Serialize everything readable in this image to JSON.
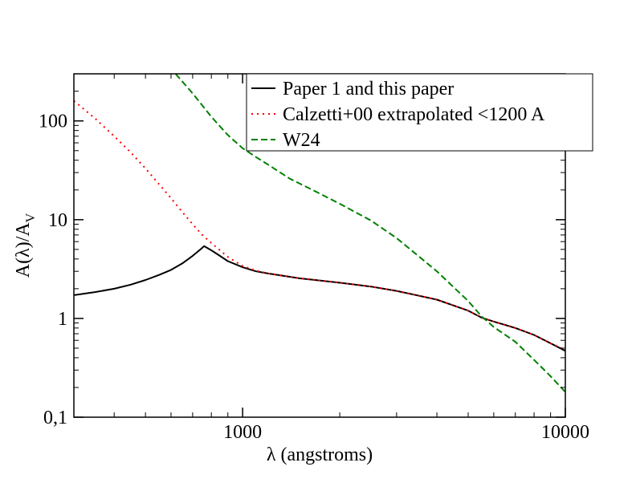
{
  "chart_data": {
    "type": "line",
    "xlabel": "λ (angstroms)",
    "ylabel_main": "A(λ)/A",
    "ylabel_sub": "V",
    "xscale": "log",
    "yscale": "log",
    "xlim": [
      300,
      10000
    ],
    "ylim": [
      0.1,
      300
    ],
    "x_ticks": [
      {
        "value": 1000,
        "label": "1000"
      },
      {
        "value": 10000,
        "label": "10000"
      }
    ],
    "y_ticks": [
      {
        "value": 0.1,
        "label": "0,1"
      },
      {
        "value": 1,
        "label": "1"
      },
      {
        "value": 10,
        "label": "10"
      },
      {
        "value": 100,
        "label": "100"
      }
    ],
    "grid": false,
    "legend_position": "top-right",
    "series": [
      {
        "name": "Paper 1 and this paper",
        "color": "#000000",
        "style": "solid",
        "points": [
          [
            300,
            1.72
          ],
          [
            350,
            1.85
          ],
          [
            400,
            2.0
          ],
          [
            450,
            2.2
          ],
          [
            500,
            2.45
          ],
          [
            550,
            2.75
          ],
          [
            600,
            3.1
          ],
          [
            650,
            3.6
          ],
          [
            700,
            4.3
          ],
          [
            740,
            5.0
          ],
          [
            760,
            5.4
          ],
          [
            800,
            4.9
          ],
          [
            850,
            4.3
          ],
          [
            900,
            3.8
          ],
          [
            1000,
            3.3
          ],
          [
            1100,
            3.0
          ],
          [
            1200,
            2.85
          ],
          [
            1500,
            2.55
          ],
          [
            2000,
            2.3
          ],
          [
            2500,
            2.1
          ],
          [
            3000,
            1.9
          ],
          [
            4000,
            1.55
          ],
          [
            5000,
            1.2
          ],
          [
            5500,
            1.02
          ],
          [
            6000,
            0.93
          ],
          [
            7000,
            0.8
          ],
          [
            8000,
            0.68
          ],
          [
            9000,
            0.56
          ],
          [
            10000,
            0.47
          ]
        ]
      },
      {
        "name": "Calzetti+00 extrapolated <1200 A",
        "color": "#ff0000",
        "style": "dotted",
        "points": [
          [
            300,
            160
          ],
          [
            350,
            105
          ],
          [
            400,
            70
          ],
          [
            450,
            48
          ],
          [
            500,
            33
          ],
          [
            550,
            23
          ],
          [
            600,
            16.5
          ],
          [
            650,
            12
          ],
          [
            700,
            9
          ],
          [
            750,
            7
          ],
          [
            800,
            5.8
          ],
          [
            900,
            4.2
          ],
          [
            1000,
            3.4
          ],
          [
            1100,
            3.05
          ],
          [
            1200,
            2.85
          ],
          [
            1500,
            2.55
          ],
          [
            2000,
            2.3
          ],
          [
            2500,
            2.1
          ],
          [
            3000,
            1.9
          ],
          [
            4000,
            1.55
          ],
          [
            5000,
            1.2
          ],
          [
            5500,
            1.02
          ],
          [
            6000,
            0.93
          ],
          [
            7000,
            0.8
          ],
          [
            8000,
            0.68
          ],
          [
            9000,
            0.56
          ],
          [
            10000,
            0.48
          ]
        ]
      },
      {
        "name": "W24",
        "color": "#008000",
        "style": "dashed",
        "points": [
          [
            620,
            300
          ],
          [
            700,
            190
          ],
          [
            800,
            110
          ],
          [
            900,
            72
          ],
          [
            1000,
            53
          ],
          [
            1100,
            43
          ],
          [
            1200,
            36
          ],
          [
            1400,
            26
          ],
          [
            1700,
            19
          ],
          [
            2000,
            14.5
          ],
          [
            2500,
            9.8
          ],
          [
            3000,
            6.5
          ],
          [
            4000,
            3.0
          ],
          [
            5000,
            1.5
          ],
          [
            5500,
            1.05
          ],
          [
            6000,
            0.82
          ],
          [
            7000,
            0.58
          ],
          [
            8000,
            0.38
          ],
          [
            9000,
            0.26
          ],
          [
            10000,
            0.18
          ]
        ]
      }
    ]
  }
}
